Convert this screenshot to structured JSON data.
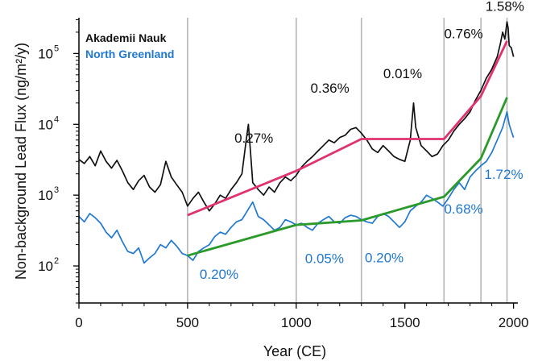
{
  "chart_data": {
    "type": "line",
    "xlabel": "Year (CE)",
    "ylabel": "Non-background Lead Flux (ng/m²/y)",
    "xlim": [
      0,
      2020
    ],
    "ylim": [
      30,
      320000
    ],
    "yscale": "log",
    "x_ticks": [
      "0",
      "500",
      "1000",
      "1500",
      "2000"
    ],
    "y_ticks": [
      {
        "base": "10",
        "exp": "2",
        "value": 100
      },
      {
        "base": "10",
        "exp": "3",
        "value": 1000
      },
      {
        "base": "10",
        "exp": "4",
        "value": 10000
      },
      {
        "base": "10",
        "exp": "5",
        "value": 100000
      }
    ],
    "vlines": [
      500,
      1000,
      1300,
      1680,
      1850,
      1970
    ],
    "legend": {
      "placement": "top-left",
      "entries": [
        {
          "name": "Akademii Nauk",
          "color": "#111111"
        },
        {
          "name": "North Greenland",
          "color": "#1f78d1"
        }
      ]
    },
    "series": [
      {
        "name": "Akademii Nauk",
        "color": "#111111",
        "x": [
          0,
          25,
          50,
          75,
          100,
          125,
          150,
          175,
          200,
          225,
          250,
          275,
          300,
          325,
          350,
          375,
          400,
          425,
          450,
          475,
          500,
          525,
          550,
          575,
          600,
          625,
          650,
          675,
          700,
          725,
          750,
          770,
          780,
          790,
          800,
          825,
          850,
          875,
          900,
          925,
          950,
          975,
          1000,
          1025,
          1050,
          1075,
          1100,
          1125,
          1150,
          1175,
          1200,
          1225,
          1250,
          1275,
          1300,
          1325,
          1350,
          1375,
          1400,
          1425,
          1450,
          1475,
          1500,
          1525,
          1540,
          1550,
          1575,
          1600,
          1625,
          1650,
          1675,
          1700,
          1725,
          1750,
          1775,
          1800,
          1825,
          1850,
          1875,
          1900,
          1925,
          1940,
          1950,
          1960,
          1970,
          1975,
          1980,
          1990,
          2000
        ],
        "values": [
          3200,
          2800,
          3500,
          2600,
          4200,
          3000,
          2400,
          3100,
          2200,
          1500,
          1200,
          1600,
          1900,
          1300,
          1100,
          1400,
          3000,
          1800,
          1400,
          1100,
          700,
          900,
          1100,
          800,
          600,
          750,
          1000,
          900,
          1200,
          1500,
          2000,
          6000,
          10000,
          4000,
          1500,
          1200,
          1000,
          1300,
          1100,
          1500,
          1800,
          1600,
          1900,
          2500,
          3000,
          3500,
          4200,
          5000,
          6000,
          5500,
          6500,
          7000,
          8500,
          9000,
          7500,
          6000,
          4500,
          4000,
          5000,
          4200,
          3500,
          3200,
          3000,
          6000,
          20000,
          9000,
          5000,
          4200,
          3500,
          3800,
          5000,
          6000,
          8000,
          10000,
          12000,
          15000,
          22000,
          30000,
          45000,
          60000,
          90000,
          140000,
          200000,
          160000,
          280000,
          230000,
          130000,
          120000,
          90000
        ]
      },
      {
        "name": "North Greenland",
        "color": "#1f78d1",
        "x": [
          0,
          25,
          50,
          75,
          100,
          125,
          150,
          175,
          200,
          225,
          250,
          275,
          300,
          325,
          350,
          375,
          400,
          425,
          450,
          475,
          500,
          525,
          550,
          575,
          600,
          625,
          650,
          675,
          700,
          725,
          750,
          775,
          800,
          825,
          850,
          875,
          900,
          925,
          950,
          975,
          1000,
          1025,
          1050,
          1075,
          1100,
          1125,
          1150,
          1175,
          1200,
          1225,
          1250,
          1275,
          1300,
          1325,
          1350,
          1375,
          1400,
          1425,
          1450,
          1475,
          1500,
          1525,
          1550,
          1575,
          1600,
          1625,
          1650,
          1675,
          1700,
          1725,
          1750,
          1775,
          1800,
          1825,
          1850,
          1875,
          1900,
          1925,
          1950,
          1970,
          1980,
          1990,
          2000
        ],
        "values": [
          500,
          420,
          550,
          480,
          400,
          300,
          250,
          320,
          220,
          160,
          150,
          180,
          110,
          130,
          150,
          200,
          180,
          230,
          190,
          150,
          140,
          120,
          160,
          180,
          200,
          260,
          300,
          280,
          350,
          420,
          450,
          600,
          800,
          500,
          450,
          380,
          320,
          350,
          450,
          420,
          380,
          400,
          350,
          320,
          400,
          450,
          500,
          420,
          400,
          480,
          520,
          500,
          450,
          420,
          400,
          500,
          550,
          500,
          420,
          350,
          420,
          600,
          700,
          800,
          1000,
          900,
          800,
          700,
          900,
          1200,
          1500,
          1200,
          1800,
          2200,
          2600,
          3000,
          4000,
          6000,
          9000,
          15000,
          10000,
          8000,
          6500
        ]
      },
      {
        "name": "",
        "color": "#e0336e",
        "x": [
          500,
          1000,
          1300,
          1680,
          1850,
          1970
        ],
        "values": [
          520,
          2200,
          6200,
          6200,
          25000,
          150000
        ]
      },
      {
        "name": "",
        "color": "#2b9a2b",
        "x": [
          500,
          1000,
          1300,
          1680,
          1850,
          1970
        ],
        "values": [
          140,
          380,
          440,
          950,
          3300,
          24000
        ]
      }
    ],
    "annotations": [
      {
        "text": "0.27%",
        "color": "#111111",
        "x": 805,
        "y": 5500
      },
      {
        "text": "0.36%",
        "color": "#111111",
        "x": 1155,
        "y": 28000
      },
      {
        "text": "0.01%",
        "color": "#111111",
        "x": 1490,
        "y": 45000
      },
      {
        "text": "0.76%",
        "color": "#111111",
        "x": 1770,
        "y": 165000
      },
      {
        "text": "1.58%",
        "color": "#111111",
        "x": 1960,
        "y": 400000
      },
      {
        "text": "0.20%",
        "color": "#1f78d1",
        "x": 645,
        "y": 66
      },
      {
        "text": "0.05%",
        "color": "#1f78d1",
        "x": 1130,
        "y": 110
      },
      {
        "text": "0.20%",
        "color": "#1f78d1",
        "x": 1405,
        "y": 112
      },
      {
        "text": "0.68%",
        "color": "#1f78d1",
        "x": 1770,
        "y": 550
      },
      {
        "text": "1.72%",
        "color": "#1f78d1",
        "x": 1955,
        "y": 1700
      }
    ]
  }
}
